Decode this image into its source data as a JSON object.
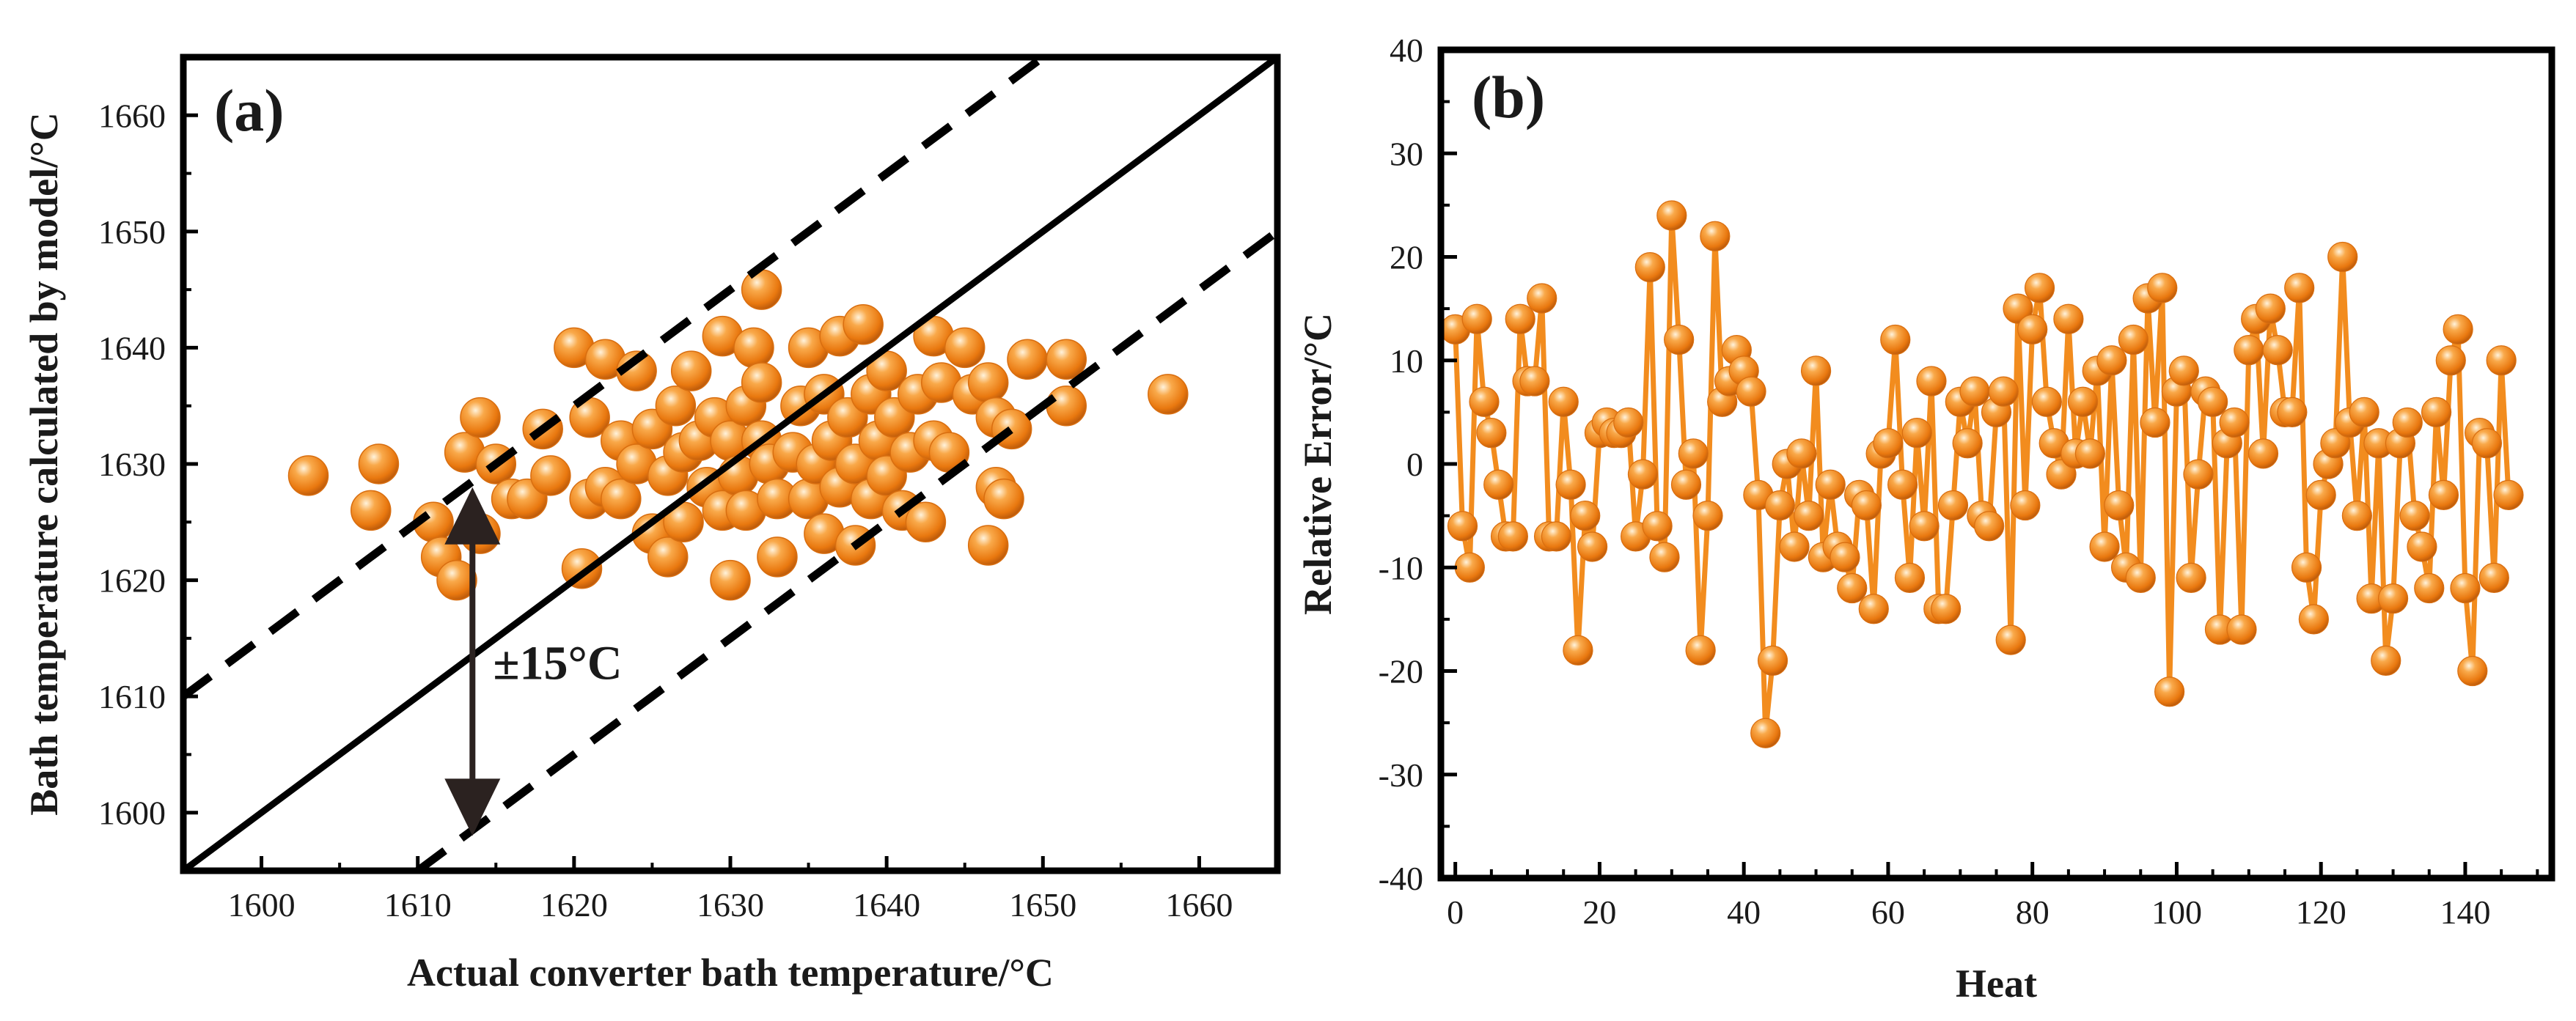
{
  "colors": {
    "marker": "#F28C1E",
    "line": "#F28C1E",
    "frame": "#000000",
    "arrow": "#2b2220"
  },
  "chart_data": [
    {
      "panel_label": "(a)",
      "type": "scatter",
      "xlabel": "Actual converter bath temperature/°C",
      "ylabel": "Bath temperature calculated by model/°C",
      "xlim": [
        1595,
        1665
      ],
      "ylim": [
        1595,
        1665
      ],
      "xticks": [
        1600,
        1610,
        1620,
        1630,
        1640,
        1650,
        1660
      ],
      "yticks": [
        1600,
        1610,
        1620,
        1630,
        1640,
        1650,
        1660
      ],
      "reference_lines": [
        {
          "style": "solid",
          "offset": 0
        },
        {
          "style": "dashed",
          "offset": 15
        },
        {
          "style": "dashed",
          "offset": -15
        }
      ],
      "annotation": {
        "text": "±15°C",
        "arrow_from": [
          1613.5,
          1628
        ],
        "arrow_to": [
          1613.5,
          1598
        ]
      },
      "points": [
        [
          1603,
          1629
        ],
        [
          1607.5,
          1630
        ],
        [
          1607,
          1626
        ],
        [
          1611,
          1625
        ],
        [
          1611.5,
          1622
        ],
        [
          1612.5,
          1620
        ],
        [
          1613,
          1631
        ],
        [
          1614,
          1634
        ],
        [
          1614,
          1624
        ],
        [
          1615,
          1630
        ],
        [
          1616,
          1627
        ],
        [
          1617,
          1627
        ],
        [
          1618,
          1633
        ],
        [
          1618.5,
          1629
        ],
        [
          1620,
          1640
        ],
        [
          1620.5,
          1621
        ],
        [
          1621,
          1627
        ],
        [
          1621,
          1634
        ],
        [
          1622,
          1628
        ],
        [
          1622,
          1639
        ],
        [
          1623,
          1632
        ],
        [
          1623,
          1627
        ],
        [
          1624,
          1638
        ],
        [
          1624,
          1630
        ],
        [
          1625,
          1624
        ],
        [
          1625,
          1633
        ],
        [
          1626,
          1622
        ],
        [
          1626,
          1629
        ],
        [
          1626.5,
          1635
        ],
        [
          1627,
          1631
        ],
        [
          1627.5,
          1638
        ],
        [
          1627,
          1625
        ],
        [
          1628,
          1632
        ],
        [
          1628.5,
          1628
        ],
        [
          1629,
          1634
        ],
        [
          1629.5,
          1641
        ],
        [
          1629.5,
          1626
        ],
        [
          1630,
          1620
        ],
        [
          1630,
          1632
        ],
        [
          1630.5,
          1629
        ],
        [
          1631,
          1635
        ],
        [
          1631,
          1626
        ],
        [
          1631.5,
          1640
        ],
        [
          1632,
          1632
        ],
        [
          1632,
          1645
        ],
        [
          1632,
          1637
        ],
        [
          1632.5,
          1630
        ],
        [
          1633,
          1627
        ],
        [
          1633,
          1622
        ],
        [
          1634,
          1631
        ],
        [
          1634.5,
          1635
        ],
        [
          1635,
          1640
        ],
        [
          1635,
          1627
        ],
        [
          1635.5,
          1630
        ],
        [
          1636,
          1636
        ],
        [
          1636,
          1624
        ],
        [
          1636.5,
          1632
        ],
        [
          1637,
          1641
        ],
        [
          1637,
          1628
        ],
        [
          1637.5,
          1634
        ],
        [
          1638,
          1630
        ],
        [
          1638,
          1623
        ],
        [
          1638.5,
          1642
        ],
        [
          1639,
          1636
        ],
        [
          1639,
          1627
        ],
        [
          1639.5,
          1632
        ],
        [
          1640,
          1638
        ],
        [
          1640,
          1629
        ],
        [
          1640.5,
          1634
        ],
        [
          1641,
          1626
        ],
        [
          1641.5,
          1631
        ],
        [
          1642,
          1636
        ],
        [
          1642.5,
          1625
        ],
        [
          1643,
          1641
        ],
        [
          1643,
          1632
        ],
        [
          1643.5,
          1637
        ],
        [
          1644,
          1631
        ],
        [
          1645,
          1640
        ],
        [
          1645.5,
          1636
        ],
        [
          1646.5,
          1637
        ],
        [
          1646.5,
          1623
        ],
        [
          1647,
          1634
        ],
        [
          1647,
          1628
        ],
        [
          1647.5,
          1627
        ],
        [
          1648,
          1633
        ],
        [
          1649,
          1639
        ],
        [
          1651.5,
          1639
        ],
        [
          1651.5,
          1635
        ],
        [
          1658,
          1636
        ]
      ]
    },
    {
      "panel_label": "(b)",
      "type": "line",
      "xlabel": "Heat",
      "ylabel": "Relative Error/°C",
      "xlim": [
        -2,
        152
      ],
      "ylim": [
        -40,
        40
      ],
      "xticks": [
        0,
        20,
        40,
        60,
        80,
        100,
        120,
        140
      ],
      "yticks": [
        -40,
        -30,
        -20,
        -10,
        0,
        10,
        20,
        30,
        40
      ],
      "y": [
        13,
        -6,
        -10,
        14,
        6,
        3,
        -2,
        -7,
        -7,
        14,
        8,
        8,
        16,
        -7,
        -7,
        6,
        -2,
        -18,
        -5,
        -8,
        3,
        4,
        3,
        3,
        4,
        -7,
        -1,
        19,
        -6,
        -9,
        24,
        12,
        -2,
        1,
        -18,
        -5,
        22,
        6,
        8,
        11,
        9,
        7,
        -3,
        -26,
        -19,
        -4,
        0,
        -8,
        1,
        -5,
        9,
        -9,
        -2,
        -8,
        -9,
        -12,
        -3,
        -4,
        -14,
        1,
        2,
        12,
        -2,
        -11,
        3,
        -6,
        8,
        -14,
        -14,
        -4,
        6,
        2,
        7,
        -5,
        -6,
        5,
        7,
        -17,
        15,
        -4,
        13,
        17,
        6,
        2,
        -1,
        14,
        1,
        6,
        1,
        9,
        -8,
        10,
        -4,
        -10,
        12,
        -11,
        16,
        4,
        17,
        -22,
        7,
        9,
        -11,
        -1,
        7,
        6,
        -16,
        2,
        4,
        -16,
        11,
        14,
        1,
        15,
        11,
        5,
        5,
        17,
        -10,
        -15,
        -3,
        0,
        2,
        20,
        4,
        -5,
        5,
        -13,
        2,
        -19,
        -13,
        2,
        4,
        -5,
        -8,
        -12,
        5,
        -3,
        10,
        13,
        -12,
        -20,
        3,
        2,
        -11,
        10,
        -3
      ]
    }
  ]
}
